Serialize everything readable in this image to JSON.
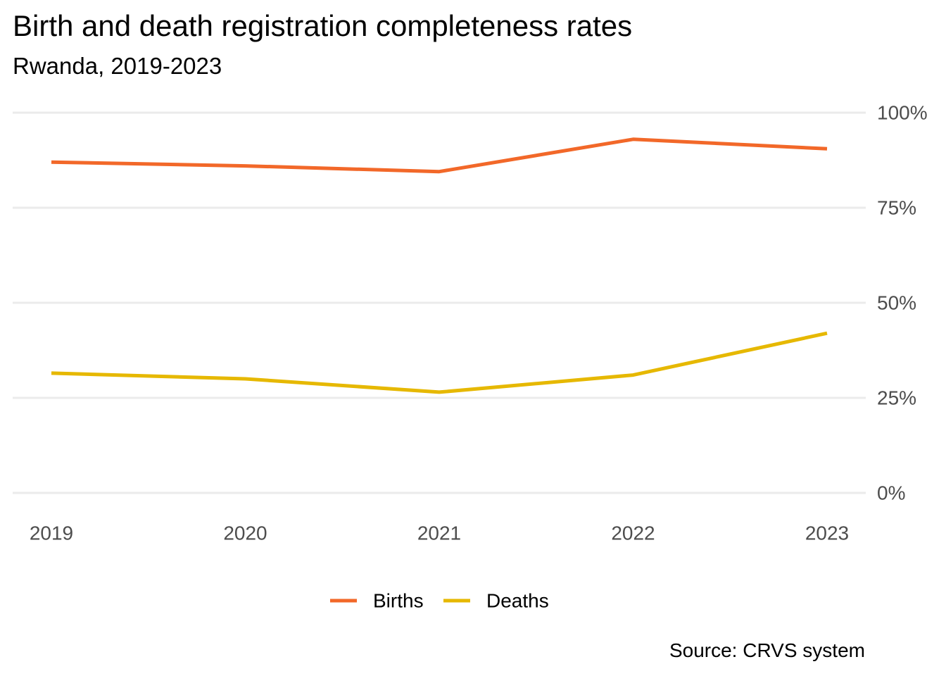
{
  "chart_data": {
    "type": "line",
    "title": "Birth and death registration completeness rates",
    "subtitle": "Rwanda, 2019-2023",
    "x": [
      "2019",
      "2020",
      "2021",
      "2022",
      "2023"
    ],
    "series": [
      {
        "name": "Births",
        "color": "#f26829",
        "values": [
          87,
          86,
          84.5,
          93,
          90.5
        ]
      },
      {
        "name": "Deaths",
        "color": "#e6b800",
        "values": [
          31.5,
          30,
          26.5,
          31,
          42
        ]
      }
    ],
    "ylim": [
      0,
      100
    ],
    "y_ticks": [
      "0%",
      "25%",
      "50%",
      "75%",
      "100%"
    ],
    "y_tick_values": [
      0,
      25,
      50,
      75,
      100
    ],
    "y_axis_position": "right",
    "grid": true,
    "legend_position": "bottom",
    "source": "Source: CRVS system"
  }
}
